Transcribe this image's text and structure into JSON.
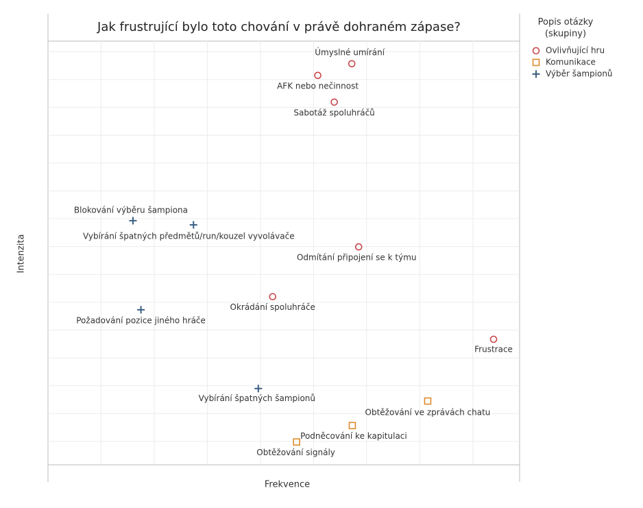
{
  "chart_data": {
    "type": "scatter",
    "title": "Jak frustrující bylo toto chování v právě dohraném zápase?",
    "x_label": "Frekvence",
    "y_label": "Intenzita",
    "legend_title": "Popis otázky (skupiny)",
    "legend_position": "right",
    "grid": true,
    "xlim": [
      0,
      8.88
    ],
    "ylim": [
      0.16,
      15.38
    ],
    "series": [
      {
        "name": "Ovlivňující hru",
        "color": "#c9474a",
        "marker": "circle",
        "labels": [
          "Úmyslné umírání",
          "AFK nebo nečinnost",
          "Sabotáž spoluhráčů",
          "Odmítání připojení se k týmu",
          "Okrádání spoluhráče",
          "Frustrace"
        ],
        "x": [
          5.72,
          5.08,
          5.39,
          5.85,
          4.23,
          8.39
        ],
        "values": [
          14.57,
          14.15,
          13.19,
          7.99,
          6.2,
          4.67
        ]
      },
      {
        "name": "Komunikace",
        "color": "#e08a2b",
        "marker": "square",
        "labels": [
          "Obtěžování ve zprávách chatu",
          "Podněcování ke kapitulaci",
          "Obtěžování signály"
        ],
        "x": [
          7.15,
          5.73,
          4.68
        ],
        "values": [
          2.45,
          1.57,
          0.98
        ]
      },
      {
        "name": "Výběr šampionů",
        "color": "#3a5f82",
        "marker": "plus",
        "labels": [
          "Blokování výběru šampiona",
          "Vybírání špatných předmětů/run/kouzel vyvolávače",
          "Požadování pozice jiného hráče",
          "Vybírání špatných šampionů"
        ],
        "x": [
          1.6,
          2.74,
          1.75,
          3.96
        ],
        "values": [
          8.93,
          8.78,
          5.73,
          2.9
        ]
      }
    ]
  }
}
